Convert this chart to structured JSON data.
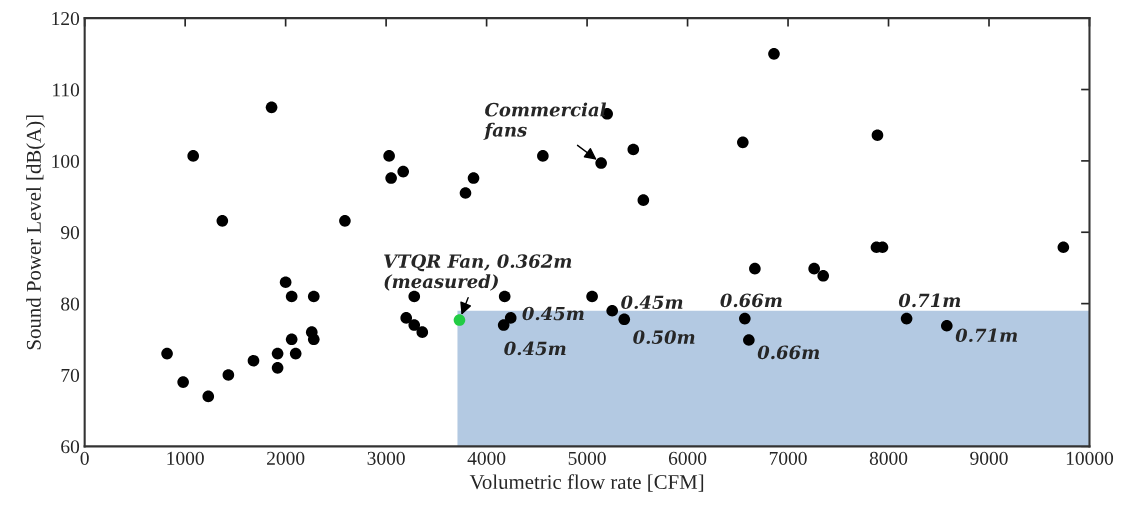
{
  "chart_data": {
    "type": "scatter",
    "xlabel": "Volumetric flow rate [CFM]",
    "ylabel": "Sound Power Level [dB(A)]",
    "xlim": [
      0,
      10000
    ],
    "xticks": [
      0,
      1000,
      2000,
      3000,
      4000,
      5000,
      6000,
      7000,
      8000,
      9000,
      10000
    ],
    "ylim": [
      60,
      120
    ],
    "yticks": [
      60,
      70,
      80,
      90,
      100,
      110,
      120
    ],
    "grid": false,
    "legend": false,
    "marker": "circle",
    "series": [
      {
        "color": "#000000",
        "x": [
          820,
          980,
          1080,
          1230,
          1370,
          1430,
          1680,
          1860,
          1920,
          1920,
          2000,
          2060,
          2060,
          2100,
          2260,
          2280,
          2280,
          2590,
          3030,
          3050,
          3170,
          3200,
          3280,
          3280,
          3360,
          3790,
          3870,
          4180,
          4170,
          4240,
          4560,
          5050,
          5250,
          5370,
          5140,
          5200,
          5460,
          5560,
          6550,
          7890,
          6670,
          7260,
          7350,
          7880,
          7940,
          9740,
          6570,
          6610,
          8180,
          8580,
          6860
        ],
        "values": [
          73,
          69,
          100.7,
          67,
          91.6,
          70,
          72,
          107.5,
          73,
          71,
          83,
          81,
          75,
          73,
          76,
          75,
          81,
          91.6,
          100.7,
          97.6,
          98.5,
          78,
          81,
          77,
          76,
          95.5,
          97.6,
          81,
          77,
          78,
          100.7,
          81,
          79,
          77.8,
          99.7,
          106.6,
          101.6,
          94.5,
          102.6,
          103.6,
          84.9,
          84.9,
          83.9,
          87.9,
          87.9,
          87.9,
          77.9,
          74.9,
          77.9,
          76.9,
          115
        ]
      },
      {
        "color": "#22cc44",
        "x": [
          3730
        ],
        "values": [
          77.7
        ]
      },
      {
        "type": "area",
        "marker": "none",
        "color": "#b3c9e2",
        "x": [
          3710,
          10000
        ],
        "values": [
          79,
          79
        ]
      }
    ],
    "annotations": [
      {
        "text": "Commercial\nfans",
        "x": 5140,
        "y": 99.7
      },
      {
        "text": "VTQR Fan, 0.362m\n(measured)",
        "x": 3730,
        "y": 77.7
      },
      {
        "text": "0.45m",
        "x": 4240,
        "y": 78
      },
      {
        "text": "0.45m",
        "x": 4170,
        "y": 77
      },
      {
        "text": "0.45m",
        "x": 5250,
        "y": 79
      },
      {
        "text": "0.50m",
        "x": 5370,
        "y": 77.8
      },
      {
        "text": "0.66m",
        "x": 6570,
        "y": 77.9
      },
      {
        "text": "0.66m",
        "x": 6610,
        "y": 74.9
      },
      {
        "text": "0.71m",
        "x": 8180,
        "y": 77.9
      },
      {
        "text": "0.71m",
        "x": 8580,
        "y": 76.9
      }
    ]
  }
}
